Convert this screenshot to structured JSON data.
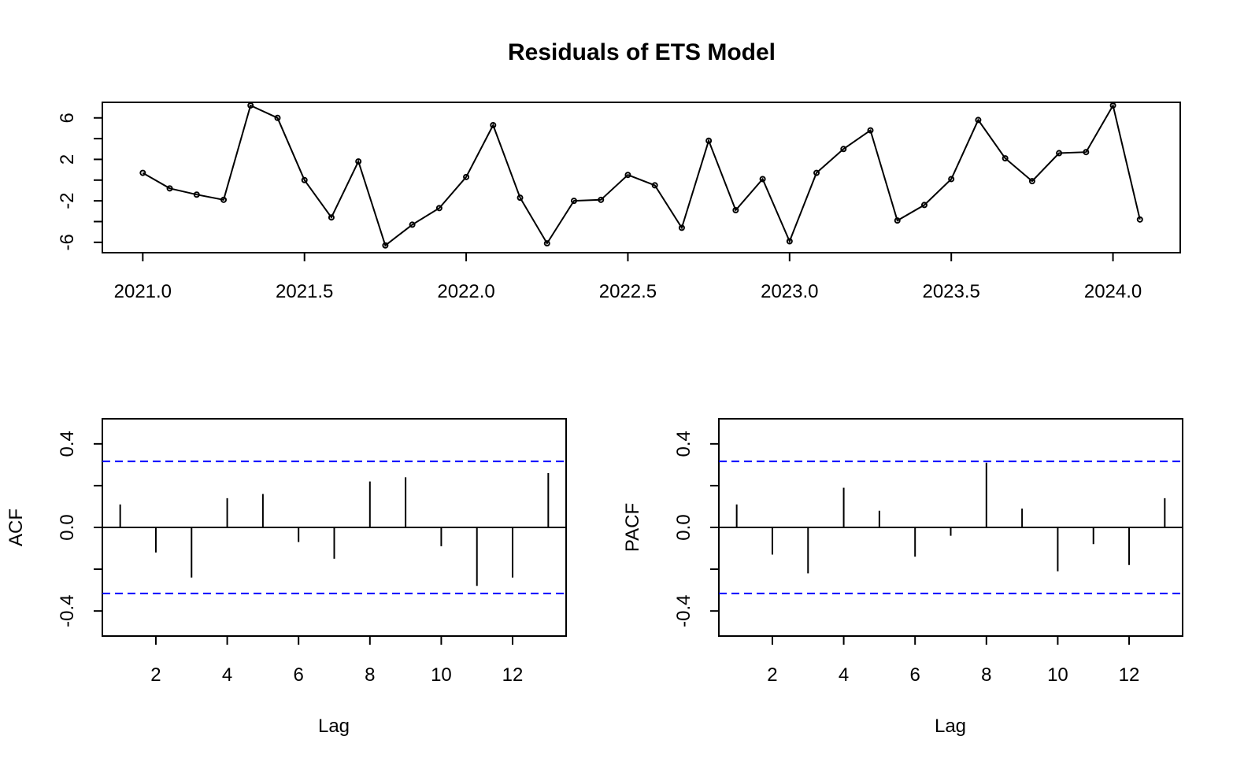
{
  "chart_data": [
    {
      "type": "line",
      "title": "Residuals of ETS Model",
      "xlabel": "",
      "ylabel": "",
      "xlim": [
        2020.875,
        2024.208
      ],
      "ylim": [
        -7.0,
        7.5
      ],
      "x_ticks": [
        "2021.0",
        "2021.5",
        "2022.0",
        "2022.5",
        "2023.0",
        "2023.5",
        "2024.0"
      ],
      "y_ticks": [
        "-6",
        "-2",
        "2",
        "6"
      ],
      "markers": true,
      "x": [
        2021.0,
        2021.0833,
        2021.1667,
        2021.25,
        2021.3333,
        2021.4167,
        2021.5,
        2021.5833,
        2021.6667,
        2021.75,
        2021.8333,
        2021.9167,
        2022.0,
        2022.0833,
        2022.1667,
        2022.25,
        2022.3333,
        2022.4167,
        2022.5,
        2022.5833,
        2022.6667,
        2022.75,
        2022.8333,
        2022.9167,
        2023.0,
        2023.0833,
        2023.1667,
        2023.25,
        2023.3333,
        2023.4167,
        2023.5,
        2023.5833,
        2023.6667,
        2023.75,
        2023.8333,
        2023.9167,
        2024.0,
        2024.0833
      ],
      "values": [
        0.7,
        -0.8,
        -1.4,
        -1.9,
        7.2,
        6.0,
        0.0,
        -3.6,
        1.8,
        -6.3,
        -4.3,
        -2.7,
        0.3,
        5.3,
        -1.7,
        -6.1,
        -2.0,
        -1.9,
        0.5,
        -0.5,
        -4.6,
        3.8,
        -2.9,
        0.1,
        -5.9,
        0.7,
        3.0,
        4.8,
        -3.9,
        -2.4,
        0.1,
        5.8,
        2.1,
        -0.1,
        2.6,
        2.7,
        7.2,
        -3.8
      ]
    },
    {
      "type": "bar",
      "title": "",
      "xlabel": "Lag",
      "ylabel": "ACF",
      "xlim": [
        0.5,
        13.5
      ],
      "ylim": [
        -0.52,
        0.52
      ],
      "x_ticks": [
        "2",
        "4",
        "6",
        "8",
        "10",
        "12"
      ],
      "y_ticks": [
        "-0.4",
        "0.0",
        "0.4"
      ],
      "lags": [
        1,
        2,
        3,
        4,
        5,
        6,
        7,
        8,
        9,
        10,
        11,
        12,
        13
      ],
      "values": [
        0.11,
        -0.12,
        -0.24,
        0.14,
        0.16,
        -0.07,
        -0.15,
        0.22,
        0.24,
        -0.09,
        -0.28,
        -0.24,
        0.26
      ],
      "confidence_bound": 0.316
    },
    {
      "type": "bar",
      "title": "",
      "xlabel": "Lag",
      "ylabel": "PACF",
      "xlim": [
        0.5,
        13.5
      ],
      "ylim": [
        -0.52,
        0.52
      ],
      "x_ticks": [
        "2",
        "4",
        "6",
        "8",
        "10",
        "12"
      ],
      "y_ticks": [
        "-0.4",
        "0.0",
        "0.4"
      ],
      "lags": [
        1,
        2,
        3,
        4,
        5,
        6,
        7,
        8,
        9,
        10,
        11,
        12,
        13
      ],
      "values": [
        0.11,
        -0.13,
        -0.22,
        0.19,
        0.08,
        -0.14,
        -0.04,
        0.31,
        0.09,
        -0.21,
        -0.08,
        -0.18,
        0.14
      ],
      "confidence_bound": 0.316
    }
  ],
  "colors": {
    "line": "#000000",
    "confidence": "#0000ff",
    "axis": "#000000"
  }
}
